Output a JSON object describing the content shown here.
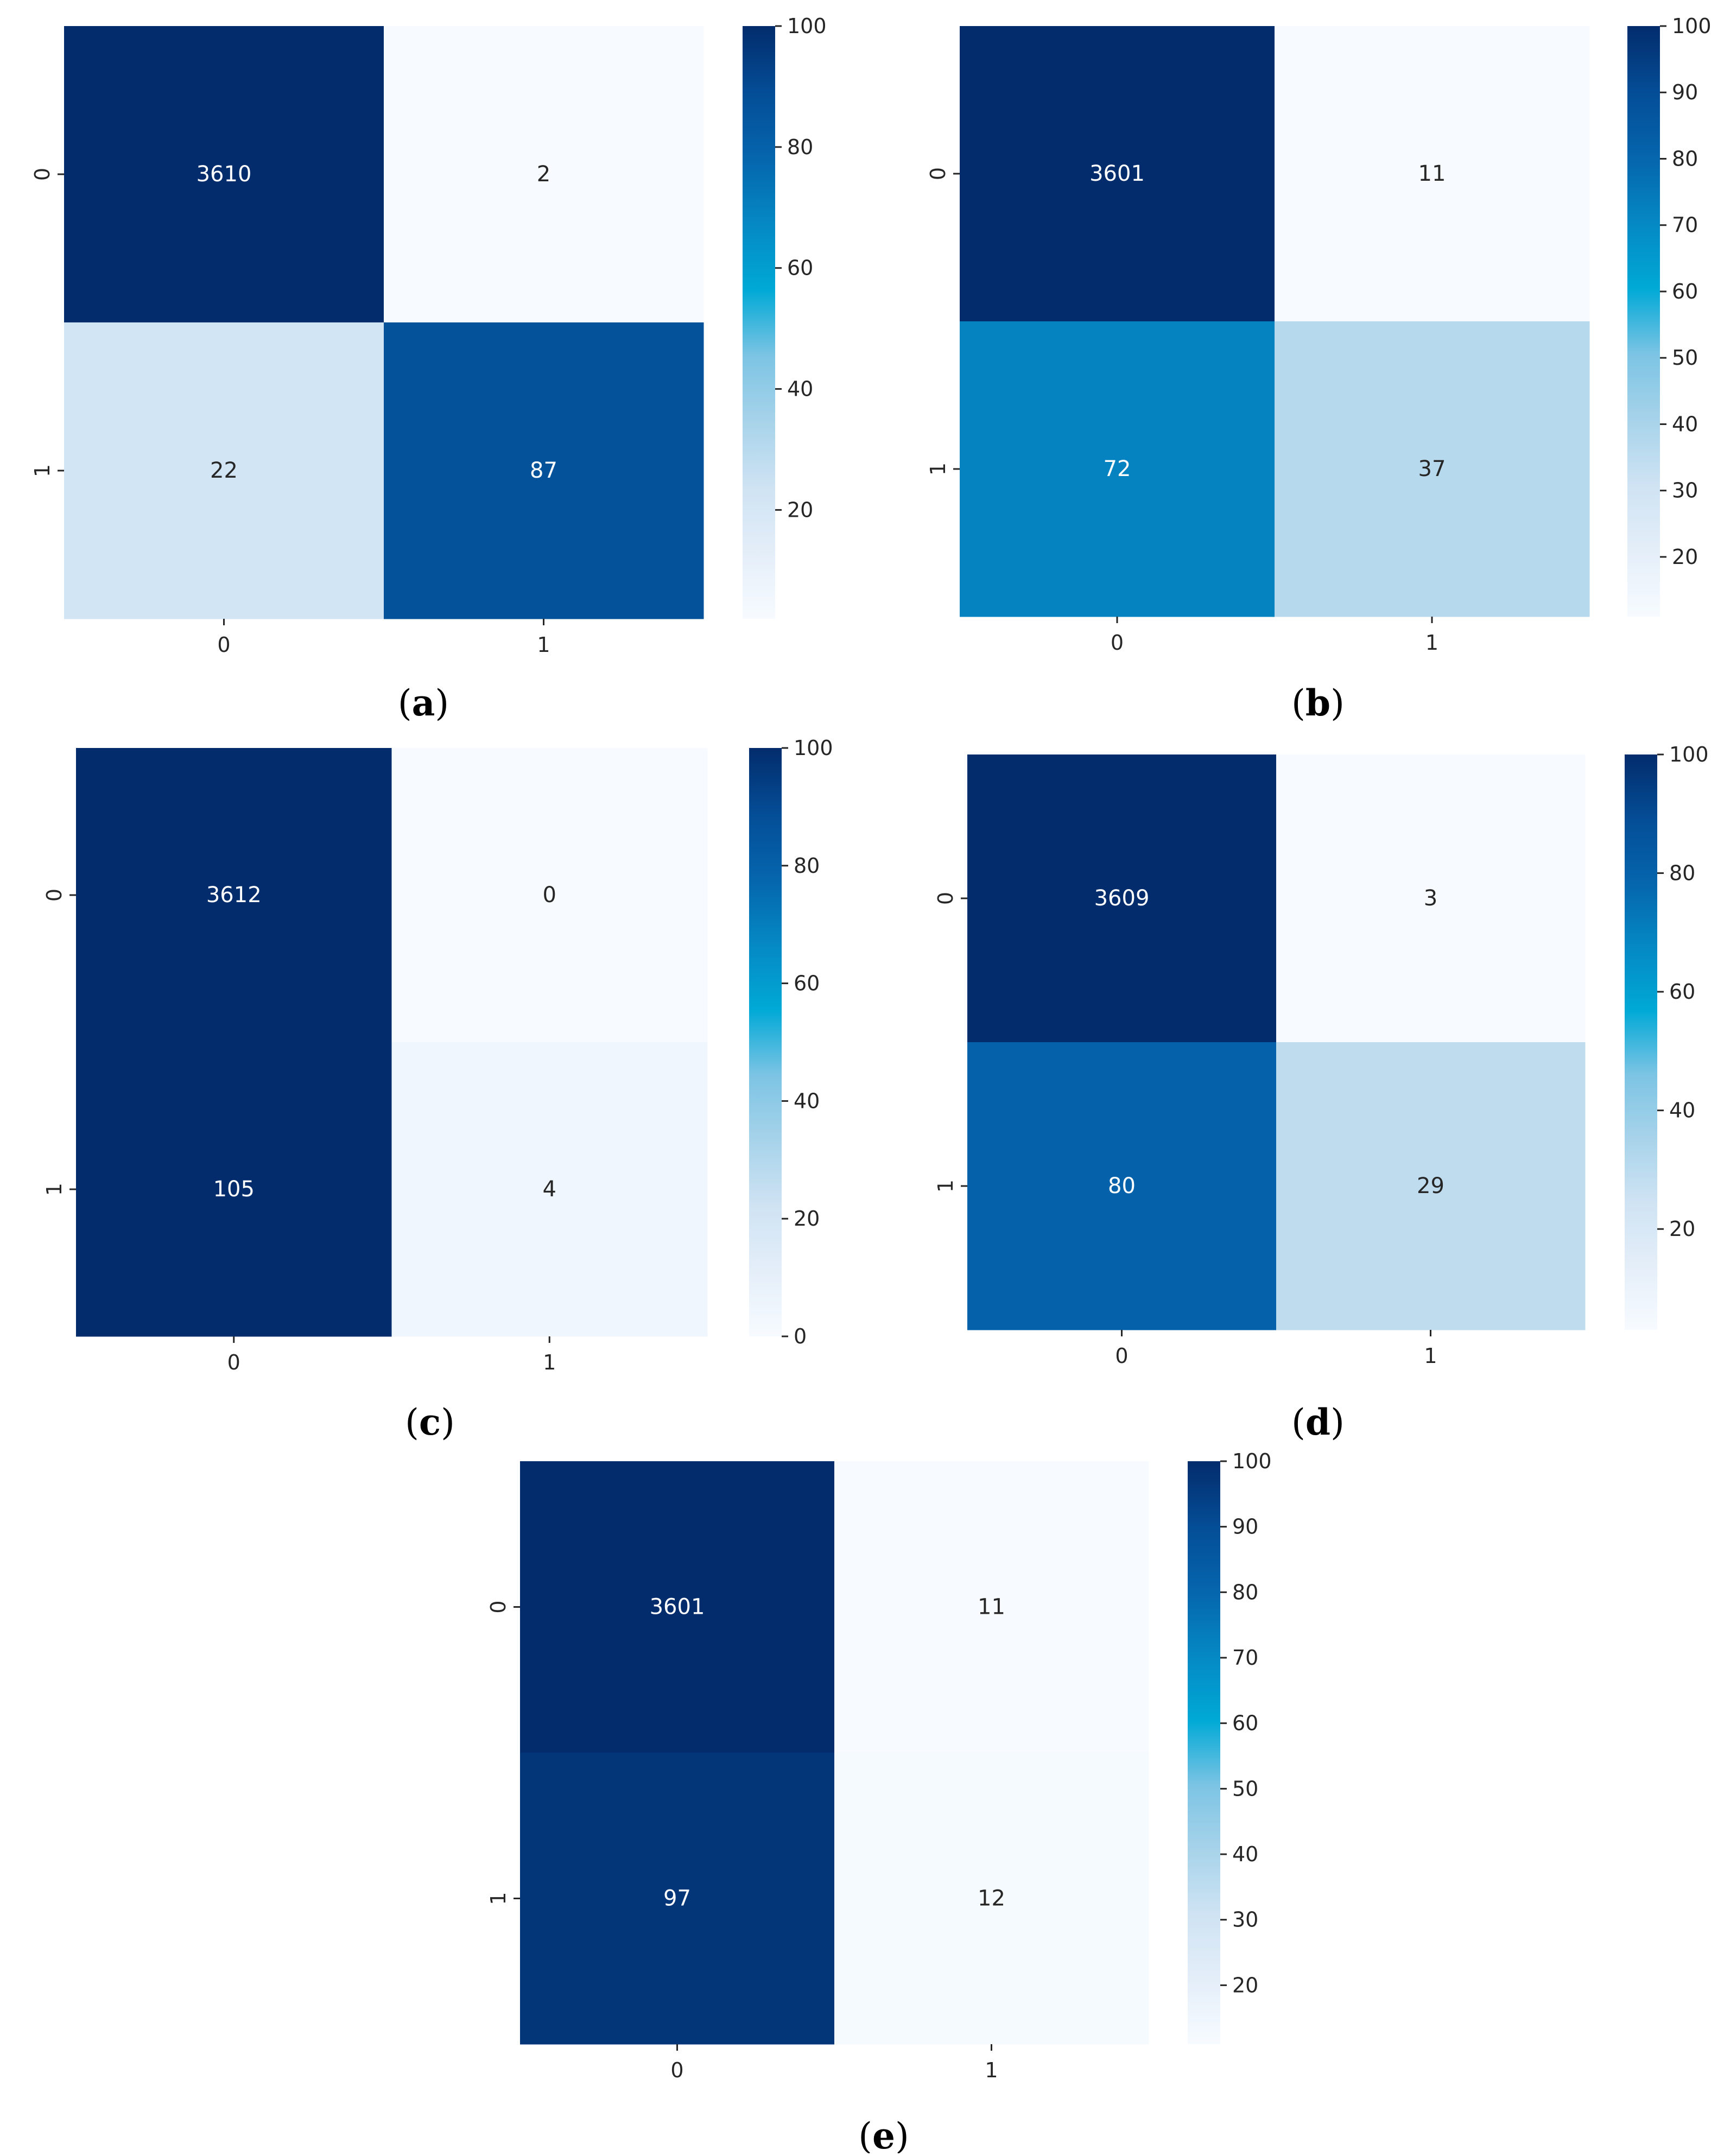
{
  "colormap": {
    "name": "Blues",
    "stops": [
      "#f7fbff",
      "#e4eef9",
      "#cfe3f3",
      "#a7d3ea",
      "#7cc4e4",
      "#00a9d6",
      "#0588c4",
      "#0565ad",
      "#044d96",
      "#032c6c"
    ]
  },
  "chart_data": [
    {
      "type": "heatmap",
      "panel": "a",
      "caption": {
        "open": "(",
        "letter": "a",
        "close": ")"
      },
      "rows": [
        "0",
        "1"
      ],
      "cols": [
        "0",
        "1"
      ],
      "values": [
        [
          3610,
          2
        ],
        [
          22,
          87
        ]
      ],
      "color_values": [
        [
          100,
          2
        ],
        [
          22,
          87
        ]
      ],
      "colorbar": {
        "min": 2,
        "max": 100,
        "ticks": [
          "100",
          "80",
          "60",
          "40",
          "20"
        ]
      }
    },
    {
      "type": "heatmap",
      "panel": "b",
      "caption": {
        "open": "(",
        "letter": "b",
        "close": ")"
      },
      "rows": [
        "0",
        "1"
      ],
      "cols": [
        "0",
        "1"
      ],
      "values": [
        [
          3601,
          11
        ],
        [
          72,
          37
        ]
      ],
      "color_values": [
        [
          100,
          11
        ],
        [
          72,
          37
        ]
      ],
      "colorbar": {
        "min": 11,
        "max": 100,
        "ticks": [
          "100",
          "90",
          "80",
          "70",
          "60",
          "50",
          "40",
          "30",
          "20"
        ]
      }
    },
    {
      "type": "heatmap",
      "panel": "c",
      "caption": {
        "open": "(",
        "letter": "c",
        "close": ")"
      },
      "rows": [
        "0",
        "1"
      ],
      "cols": [
        "0",
        "1"
      ],
      "values": [
        [
          3612,
          0
        ],
        [
          105,
          4
        ]
      ],
      "color_values": [
        [
          100,
          0
        ],
        [
          100,
          4
        ]
      ],
      "colorbar": {
        "min": 0,
        "max": 100,
        "ticks": [
          "100",
          "80",
          "60",
          "40",
          "20",
          "0"
        ]
      }
    },
    {
      "type": "heatmap",
      "panel": "d",
      "caption": {
        "open": "(",
        "letter": "d",
        "close": ")"
      },
      "rows": [
        "0",
        "1"
      ],
      "cols": [
        "0",
        "1"
      ],
      "values": [
        [
          3609,
          3
        ],
        [
          80,
          29
        ]
      ],
      "color_values": [
        [
          100,
          3
        ],
        [
          80,
          29
        ]
      ],
      "colorbar": {
        "min": 3,
        "max": 100,
        "ticks": [
          "100",
          "80",
          "60",
          "40",
          "20"
        ]
      }
    },
    {
      "type": "heatmap",
      "panel": "e",
      "caption": {
        "open": "(",
        "letter": "e",
        "close": ")"
      },
      "rows": [
        "0",
        "1"
      ],
      "cols": [
        "0",
        "1"
      ],
      "values": [
        [
          3601,
          11
        ],
        [
          97,
          12
        ]
      ],
      "color_values": [
        [
          100,
          11
        ],
        [
          97,
          12
        ]
      ],
      "colorbar": {
        "min": 11,
        "max": 100,
        "ticks": [
          "100",
          "90",
          "80",
          "70",
          "60",
          "50",
          "40",
          "30",
          "20"
        ]
      }
    }
  ]
}
